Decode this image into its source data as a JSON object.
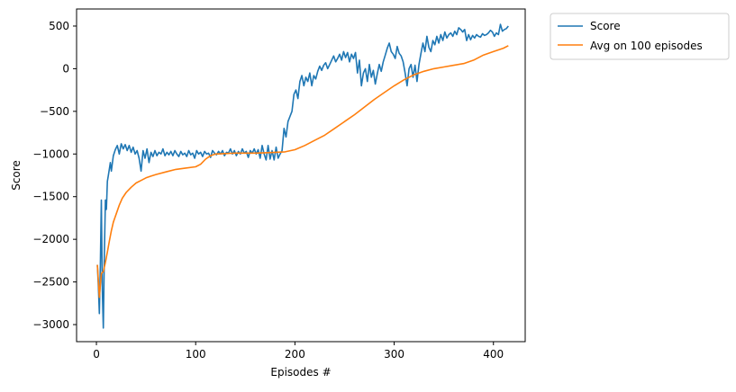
{
  "chart_data": {
    "type": "line",
    "xlabel": "Episodes #",
    "ylabel": "Score",
    "xlim": [
      -20,
      432
    ],
    "ylim": [
      -3200,
      700
    ],
    "xticks": [
      0,
      100,
      200,
      300,
      400
    ],
    "yticks": [
      -3000,
      -2500,
      -2000,
      -1500,
      -1000,
      -500,
      0,
      500
    ],
    "grid": false,
    "legend_position": "outside-top-right",
    "series": [
      {
        "name": "Score",
        "color": "#1f77b4",
        "points": [
          [
            1,
            -2300
          ],
          [
            2,
            -2550
          ],
          [
            3,
            -2870
          ],
          [
            4,
            -2300
          ],
          [
            5,
            -1540
          ],
          [
            6,
            -2600
          ],
          [
            7,
            -3040
          ],
          [
            8,
            -2200
          ],
          [
            9,
            -1540
          ],
          [
            10,
            -1650
          ],
          [
            11,
            -1320
          ],
          [
            12,
            -1250
          ],
          [
            14,
            -1100
          ],
          [
            15,
            -1200
          ],
          [
            17,
            -1020
          ],
          [
            19,
            -950
          ],
          [
            21,
            -900
          ],
          [
            23,
            -1000
          ],
          [
            25,
            -880
          ],
          [
            27,
            -940
          ],
          [
            29,
            -890
          ],
          [
            31,
            -960
          ],
          [
            33,
            -900
          ],
          [
            35,
            -980
          ],
          [
            37,
            -920
          ],
          [
            39,
            -1000
          ],
          [
            41,
            -960
          ],
          [
            43,
            -1050
          ],
          [
            45,
            -1200
          ],
          [
            47,
            -960
          ],
          [
            49,
            -1050
          ],
          [
            51,
            -940
          ],
          [
            53,
            -1100
          ],
          [
            55,
            -980
          ],
          [
            57,
            -1030
          ],
          [
            59,
            -960
          ],
          [
            61,
            -1020
          ],
          [
            63,
            -980
          ],
          [
            65,
            -1000
          ],
          [
            67,
            -940
          ],
          [
            69,
            -1020
          ],
          [
            71,
            -980
          ],
          [
            73,
            -1010
          ],
          [
            75,
            -970
          ],
          [
            77,
            -1020
          ],
          [
            79,
            -960
          ],
          [
            81,
            -1000
          ],
          [
            83,
            -1030
          ],
          [
            85,
            -970
          ],
          [
            87,
            -1010
          ],
          [
            89,
            -990
          ],
          [
            91,
            -1030
          ],
          [
            93,
            -960
          ],
          [
            95,
            -1010
          ],
          [
            97,
            -990
          ],
          [
            99,
            -1050
          ],
          [
            101,
            -960
          ],
          [
            103,
            -1000
          ],
          [
            105,
            -980
          ],
          [
            107,
            -1030
          ],
          [
            109,
            -970
          ],
          [
            111,
            -1000
          ],
          [
            113,
            -990
          ],
          [
            115,
            -1040
          ],
          [
            117,
            -960
          ],
          [
            119,
            -990
          ],
          [
            121,
            -1010
          ],
          [
            123,
            -970
          ],
          [
            125,
            -1000
          ],
          [
            127,
            -960
          ],
          [
            129,
            -1020
          ],
          [
            131,
            -980
          ],
          [
            133,
            -990
          ],
          [
            135,
            -940
          ],
          [
            137,
            -1000
          ],
          [
            139,
            -960
          ],
          [
            141,
            -1020
          ],
          [
            143,
            -970
          ],
          [
            145,
            -1000
          ],
          [
            147,
            -940
          ],
          [
            149,
            -990
          ],
          [
            151,
            -970
          ],
          [
            153,
            -1040
          ],
          [
            155,
            -960
          ],
          [
            157,
            -990
          ],
          [
            159,
            -940
          ],
          [
            161,
            -1000
          ],
          [
            163,
            -950
          ],
          [
            165,
            -1050
          ],
          [
            167,
            -900
          ],
          [
            169,
            -1000
          ],
          [
            171,
            -1070
          ],
          [
            173,
            -900
          ],
          [
            175,
            -1060
          ],
          [
            177,
            -960
          ],
          [
            179,
            -1070
          ],
          [
            181,
            -920
          ],
          [
            183,
            -1050
          ],
          [
            185,
            -1000
          ],
          [
            187,
            -960
          ],
          [
            189,
            -700
          ],
          [
            191,
            -800
          ],
          [
            193,
            -620
          ],
          [
            195,
            -560
          ],
          [
            197,
            -500
          ],
          [
            199,
            -300
          ],
          [
            201,
            -250
          ],
          [
            203,
            -350
          ],
          [
            205,
            -150
          ],
          [
            207,
            -80
          ],
          [
            209,
            -200
          ],
          [
            211,
            -100
          ],
          [
            213,
            -150
          ],
          [
            215,
            -50
          ],
          [
            217,
            -200
          ],
          [
            219,
            -80
          ],
          [
            221,
            -120
          ],
          [
            223,
            -30
          ],
          [
            225,
            30
          ],
          [
            227,
            -20
          ],
          [
            229,
            40
          ],
          [
            231,
            70
          ],
          [
            233,
            0
          ],
          [
            235,
            50
          ],
          [
            237,
            100
          ],
          [
            239,
            150
          ],
          [
            241,
            80
          ],
          [
            243,
            120
          ],
          [
            245,
            170
          ],
          [
            247,
            100
          ],
          [
            249,
            200
          ],
          [
            251,
            130
          ],
          [
            253,
            190
          ],
          [
            255,
            80
          ],
          [
            257,
            170
          ],
          [
            259,
            120
          ],
          [
            261,
            190
          ],
          [
            263,
            -50
          ],
          [
            265,
            100
          ],
          [
            267,
            -200
          ],
          [
            269,
            -50
          ],
          [
            271,
            0
          ],
          [
            273,
            -150
          ],
          [
            275,
            50
          ],
          [
            277,
            -100
          ],
          [
            279,
            -20
          ],
          [
            281,
            -180
          ],
          [
            283,
            -60
          ],
          [
            285,
            50
          ],
          [
            287,
            -30
          ],
          [
            289,
            80
          ],
          [
            291,
            160
          ],
          [
            293,
            240
          ],
          [
            295,
            300
          ],
          [
            297,
            200
          ],
          [
            299,
            170
          ],
          [
            301,
            120
          ],
          [
            303,
            260
          ],
          [
            305,
            180
          ],
          [
            307,
            150
          ],
          [
            309,
            80
          ],
          [
            311,
            -50
          ],
          [
            313,
            -200
          ],
          [
            315,
            0
          ],
          [
            317,
            50
          ],
          [
            319,
            -100
          ],
          [
            321,
            40
          ],
          [
            323,
            -150
          ],
          [
            325,
            50
          ],
          [
            327,
            180
          ],
          [
            329,
            300
          ],
          [
            331,
            200
          ],
          [
            333,
            380
          ],
          [
            335,
            250
          ],
          [
            337,
            200
          ],
          [
            339,
            330
          ],
          [
            341,
            280
          ],
          [
            343,
            380
          ],
          [
            345,
            300
          ],
          [
            347,
            400
          ],
          [
            349,
            330
          ],
          [
            351,
            430
          ],
          [
            353,
            360
          ],
          [
            355,
            400
          ],
          [
            357,
            420
          ],
          [
            359,
            380
          ],
          [
            361,
            440
          ],
          [
            363,
            400
          ],
          [
            365,
            480
          ],
          [
            367,
            460
          ],
          [
            369,
            430
          ],
          [
            371,
            460
          ],
          [
            373,
            330
          ],
          [
            375,
            400
          ],
          [
            377,
            340
          ],
          [
            379,
            390
          ],
          [
            381,
            360
          ],
          [
            383,
            400
          ],
          [
            385,
            380
          ],
          [
            387,
            370
          ],
          [
            389,
            410
          ],
          [
            391,
            390
          ],
          [
            393,
            400
          ],
          [
            395,
            420
          ],
          [
            397,
            450
          ],
          [
            399,
            430
          ],
          [
            401,
            380
          ],
          [
            403,
            420
          ],
          [
            405,
            400
          ],
          [
            407,
            520
          ],
          [
            409,
            440
          ],
          [
            411,
            460
          ],
          [
            413,
            470
          ],
          [
            415,
            500
          ]
        ]
      },
      {
        "name": "Avg on 100 episodes",
        "color": "#ff7f0e",
        "points": [
          [
            1,
            -2300
          ],
          [
            3,
            -2680
          ],
          [
            5,
            -2400
          ],
          [
            7,
            -2380
          ],
          [
            9,
            -2270
          ],
          [
            11,
            -2150
          ],
          [
            13,
            -2020
          ],
          [
            15,
            -1900
          ],
          [
            17,
            -1800
          ],
          [
            20,
            -1700
          ],
          [
            23,
            -1600
          ],
          [
            26,
            -1520
          ],
          [
            30,
            -1450
          ],
          [
            35,
            -1390
          ],
          [
            40,
            -1340
          ],
          [
            45,
            -1310
          ],
          [
            50,
            -1280
          ],
          [
            55,
            -1260
          ],
          [
            60,
            -1240
          ],
          [
            70,
            -1210
          ],
          [
            80,
            -1180
          ],
          [
            90,
            -1165
          ],
          [
            100,
            -1150
          ],
          [
            105,
            -1120
          ],
          [
            110,
            -1060
          ],
          [
            115,
            -1020
          ],
          [
            120,
            -1000
          ],
          [
            130,
            -995
          ],
          [
            140,
            -990
          ],
          [
            150,
            -990
          ],
          [
            160,
            -990
          ],
          [
            170,
            -985
          ],
          [
            180,
            -980
          ],
          [
            190,
            -975
          ],
          [
            200,
            -950
          ],
          [
            210,
            -900
          ],
          [
            220,
            -840
          ],
          [
            230,
            -780
          ],
          [
            240,
            -700
          ],
          [
            250,
            -620
          ],
          [
            260,
            -540
          ],
          [
            270,
            -450
          ],
          [
            280,
            -360
          ],
          [
            290,
            -280
          ],
          [
            300,
            -200
          ],
          [
            310,
            -130
          ],
          [
            320,
            -70
          ],
          [
            330,
            -30
          ],
          [
            340,
            0
          ],
          [
            350,
            20
          ],
          [
            360,
            40
          ],
          [
            370,
            60
          ],
          [
            380,
            100
          ],
          [
            390,
            160
          ],
          [
            400,
            200
          ],
          [
            410,
            240
          ],
          [
            415,
            270
          ]
        ]
      }
    ]
  }
}
